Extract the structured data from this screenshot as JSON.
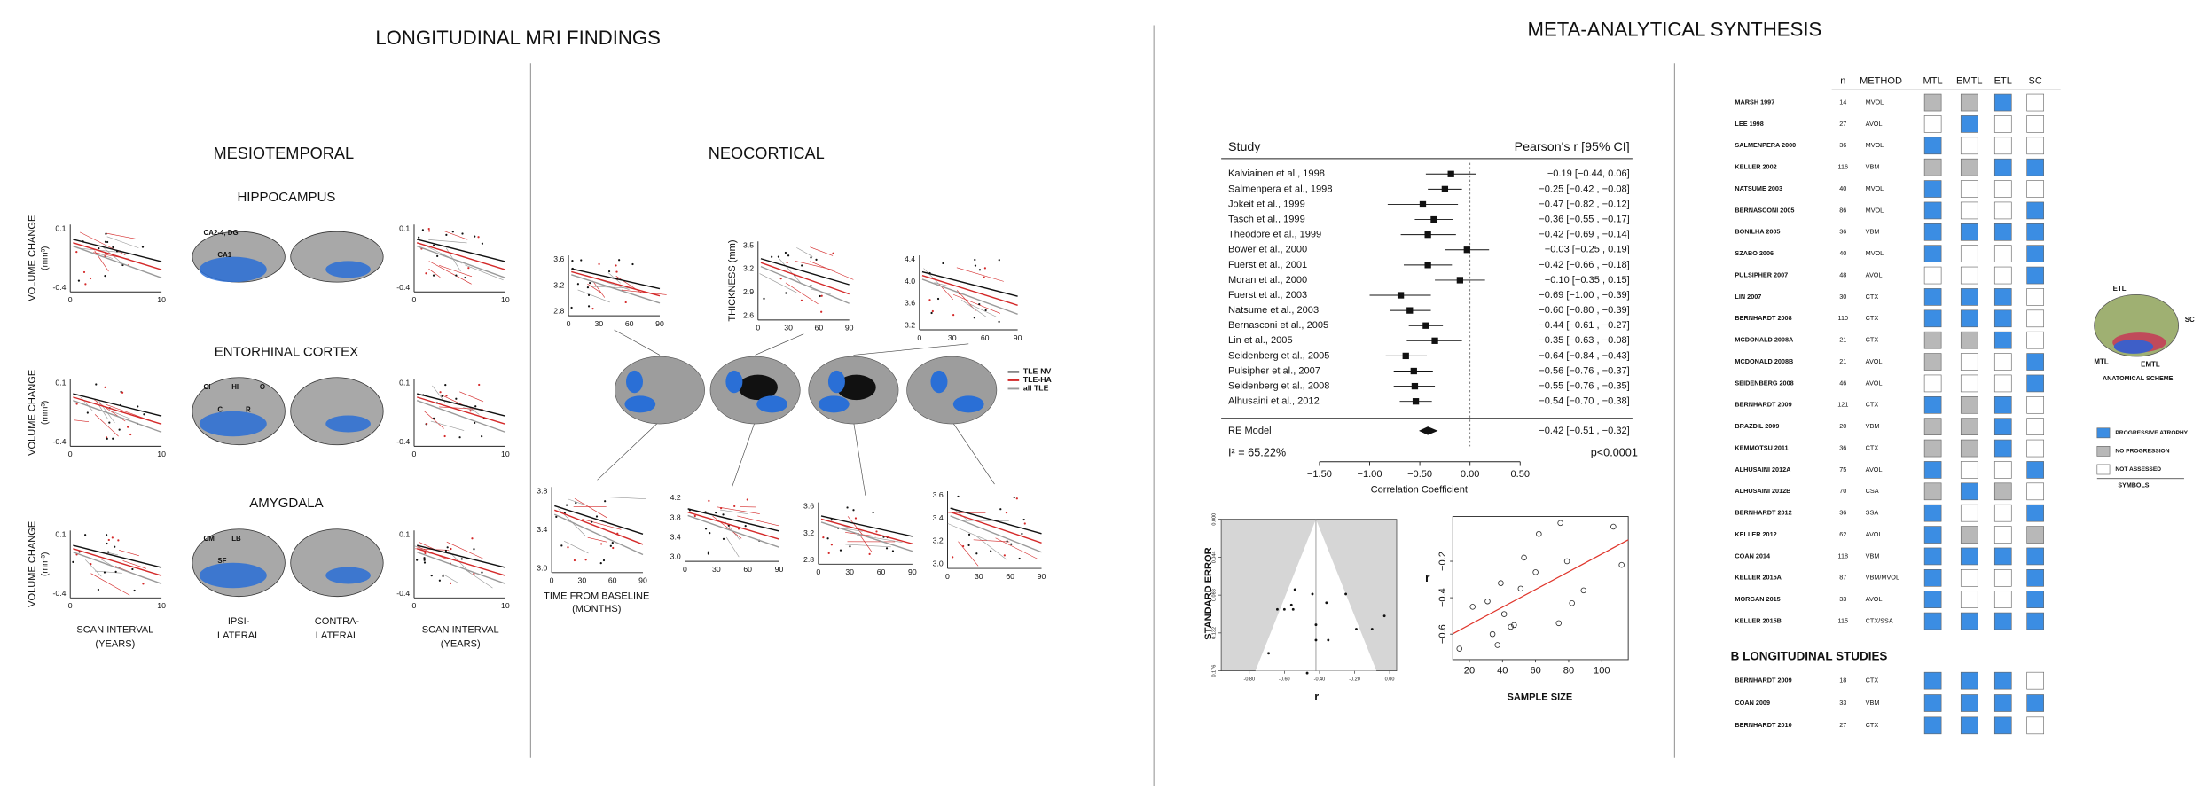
{
  "left": {
    "title": "LONGITUDINAL MRI FINDINGS",
    "mesio": "MESIOTEMPORAL",
    "neo": "NEOCORTICAL",
    "structures": [
      "HIPPOCAMPUS",
      "ENTORHINAL CORTEX",
      "AMYGDALA"
    ],
    "y_label": [
      "VOLUME CHANGE",
      "(mm³)"
    ],
    "x_label": [
      "SCAN INTERVAL",
      "(YEARS)"
    ],
    "sides": [
      [
        "IPSI-",
        "LATERAL"
      ],
      [
        "CONTRA-",
        "LATERAL"
      ]
    ],
    "mesio_yticks": [
      "0.1",
      "-0.4"
    ],
    "mesio_xticks": [
      "0",
      "10"
    ],
    "subfields": [
      [
        "CA2-4, DG",
        "CA1"
      ],
      [
        "CI",
        "C",
        "HI",
        "R",
        "O"
      ],
      [
        "CM",
        "SF",
        "LB"
      ]
    ],
    "neo_plots": [
      {
        "yticks": [
          "3.6",
          "3.2",
          "2.8"
        ]
      },
      {
        "yticks": [
          "3.5",
          "3.2",
          "2.9",
          "2.6"
        ]
      },
      {
        "yticks": [
          "4.4",
          "4.0",
          "3.6",
          "3.2"
        ]
      },
      {
        "yticks": [
          "3.8",
          "3.4",
          "3.0"
        ]
      },
      {
        "yticks": [
          "4.2",
          "3.8",
          "3.4",
          "3.0"
        ]
      },
      {
        "yticks": [
          "3.6",
          "3.2",
          "2.8"
        ]
      },
      {
        "yticks": [
          "3.6",
          "3.4",
          "3.2",
          "3.0"
        ]
      }
    ],
    "neo_xticks": [
      "0",
      "30",
      "60",
      "90"
    ],
    "thickness_label": "THICKNESS (mm)",
    "time_label": [
      "TIME FROM BASELINE",
      "(MONTHS)"
    ],
    "legend": [
      {
        "label": "TLE-NV",
        "color": "#111111"
      },
      {
        "label": "TLE-HA",
        "color": "#d42a2a"
      },
      {
        "label": "all TLE",
        "color": "#9a9a9a"
      }
    ]
  },
  "right": {
    "title": "META-ANALYTICAL SYNTHESIS",
    "forest": {
      "header_study": "Study",
      "header_r": "Pearson's r [95% CI]",
      "studies": [
        {
          "name": "Kalviainen et al., 1998",
          "r": -0.19,
          "lo": -0.44,
          "hi": 0.06,
          "ci": "−0.19 [−0.44,  0.06]"
        },
        {
          "name": "Salmenpera et al., 1998",
          "r": -0.25,
          "lo": -0.42,
          "hi": -0.08,
          "ci": "−0.25 [−0.42 , −0.08]"
        },
        {
          "name": "Jokeit et al., 1999",
          "r": -0.47,
          "lo": -0.82,
          "hi": -0.12,
          "ci": "−0.47 [−0.82 , −0.12]"
        },
        {
          "name": "Tasch et al., 1999",
          "r": -0.36,
          "lo": -0.55,
          "hi": -0.17,
          "ci": "−0.36 [−0.55 , −0.17]"
        },
        {
          "name": "Theodore et al., 1999",
          "r": -0.42,
          "lo": -0.69,
          "hi": -0.14,
          "ci": "−0.42 [−0.69 , −0.14]"
        },
        {
          "name": "Bower et al., 2000",
          "r": -0.03,
          "lo": -0.25,
          "hi": 0.19,
          "ci": "−0.03 [−0.25 ,  0.19]"
        },
        {
          "name": "Fuerst et al., 2001",
          "r": -0.42,
          "lo": -0.66,
          "hi": -0.18,
          "ci": "−0.42 [−0.66 , −0.18]"
        },
        {
          "name": "Moran et al., 2000",
          "r": -0.1,
          "lo": -0.35,
          "hi": 0.15,
          "ci": "−0.10 [−0.35 ,  0.15]"
        },
        {
          "name": "Fuerst et al., 2003",
          "r": -0.69,
          "lo": -1.0,
          "hi": -0.39,
          "ci": "−0.69 [−1.00 , −0.39]"
        },
        {
          "name": "Natsume et al., 2003",
          "r": -0.6,
          "lo": -0.8,
          "hi": -0.39,
          "ci": "−0.60 [−0.80 , −0.39]"
        },
        {
          "name": "Bernasconi et al., 2005",
          "r": -0.44,
          "lo": -0.61,
          "hi": -0.27,
          "ci": "−0.44 [−0.61 , −0.27]"
        },
        {
          "name": "Lin et al., 2005",
          "r": -0.35,
          "lo": -0.63,
          "hi": -0.08,
          "ci": "−0.35 [−0.63 , −0.08]"
        },
        {
          "name": "Seidenberg et al., 2005",
          "r": -0.64,
          "lo": -0.84,
          "hi": -0.43,
          "ci": "−0.64 [−0.84 , −0.43]"
        },
        {
          "name": "Pulsipher et al., 2007",
          "r": -0.56,
          "lo": -0.76,
          "hi": -0.37,
          "ci": "−0.56 [−0.76 , −0.37]"
        },
        {
          "name": "Seidenberg et al., 2008",
          "r": -0.55,
          "lo": -0.76,
          "hi": -0.35,
          "ci": "−0.55 [−0.76 , −0.35]"
        },
        {
          "name": "Alhusaini et al., 2012",
          "r": -0.54,
          "lo": -0.7,
          "hi": -0.38,
          "ci": "−0.54 [−0.70 , −0.38]"
        }
      ],
      "re": {
        "name": "RE Model",
        "r": -0.42,
        "lo": -0.51,
        "hi": -0.32,
        "ci": "−0.42 [−0.51 , −0.32]"
      },
      "i2": "I² = 65.22%",
      "p": "p<0.0001",
      "xlabel": "Correlation Coefficient",
      "xlim": [
        -1.5,
        0.5
      ],
      "xticks": [
        {
          "value": -1.5,
          "label": "−1.50"
        },
        {
          "value": -1,
          "label": "−1.00"
        },
        {
          "value": -0.5,
          "label": "−0.50"
        },
        {
          "value": 0,
          "label": "0.00"
        },
        {
          "value": 0.5,
          "label": "0.50"
        }
      ]
    },
    "funnel": {
      "ylabel": "STANDARD ERROR",
      "xlabel": "r",
      "xlim": [
        -0.96,
        0.04
      ],
      "ylim": [
        0,
        0.176
      ],
      "xticks": [
        {
          "value": -0.8,
          "label": "-0.80"
        },
        {
          "value": -0.6,
          "label": "-0.60"
        },
        {
          "value": -0.4,
          "label": "-0.40"
        },
        {
          "value": -0.2,
          "label": "-0.20"
        },
        {
          "value": 0,
          "label": "0.00"
        }
      ],
      "yticks": [
        {
          "value": 0,
          "label": "0.000"
        },
        {
          "value": 0.044,
          "label": "0.044"
        },
        {
          "value": 0.088,
          "label": "0.088"
        },
        {
          "value": 0.132,
          "label": "0.132"
        },
        {
          "value": 0.176,
          "label": "0.176"
        }
      ]
    },
    "scatter": {
      "xlabel": "SAMPLE SIZE",
      "ylabel": "r",
      "x": [
        14,
        22,
        31,
        34,
        37,
        39,
        41,
        45,
        47,
        51,
        53,
        60,
        62,
        74,
        75,
        79,
        82,
        89,
        107,
        112
      ],
      "y": [
        -0.68,
        -0.45,
        -0.42,
        -0.6,
        -0.66,
        -0.32,
        -0.49,
        -0.56,
        -0.55,
        -0.35,
        -0.18,
        -0.26,
        -0.05,
        -0.54,
        0.01,
        -0.2,
        -0.43,
        -0.36,
        -0.01,
        -0.22
      ],
      "xlim": [
        10,
        116
      ],
      "ylim": [
        -0.74,
        0.046
      ],
      "xticks": [
        20,
        40,
        60,
        80,
        100
      ],
      "yticks": [
        {
          "value": -0.6,
          "label": "−0.6"
        },
        {
          "value": -0.4,
          "label": "−0.4"
        },
        {
          "value": -0.2,
          "label": "−0.2"
        }
      ],
      "fit_color": "#e0352b"
    },
    "table": {
      "columns": [
        "n",
        "METHOD",
        "MTL",
        "EMTL",
        "ETL",
        "SC"
      ],
      "rows": [
        {
          "study": "MARSH 1997",
          "n": 14,
          "method": "MVOL",
          "cells": [
            "#b8b8b8",
            "#b8b8b8",
            "#3b8de3",
            "#ffffff"
          ]
        },
        {
          "study": "LEE 1998",
          "n": 27,
          "method": "AVOL",
          "cells": [
            "#ffffff",
            "#3b8de3",
            "#ffffff",
            "#ffffff"
          ]
        },
        {
          "study": "SALMENPERA 2000",
          "n": 36,
          "method": "MVOL",
          "cells": [
            "#3b8de3",
            "#ffffff",
            "#ffffff",
            "#ffffff"
          ]
        },
        {
          "study": "KELLER 2002",
          "n": 116,
          "method": "VBM",
          "cells": [
            "#b8b8b8",
            "#b8b8b8",
            "#3b8de3",
            "#3b8de3"
          ]
        },
        {
          "study": "NATSUME 2003",
          "n": 40,
          "method": "MVOL",
          "cells": [
            "#3b8de3",
            "#ffffff",
            "#ffffff",
            "#ffffff"
          ]
        },
        {
          "study": "BERNASCONI 2005",
          "n": 86,
          "method": "MVOL",
          "cells": [
            "#3b8de3",
            "#ffffff",
            "#ffffff",
            "#3b8de3"
          ]
        },
        {
          "study": "BONILHA 2005",
          "n": 36,
          "method": "VBM",
          "cells": [
            "#3b8de3",
            "#3b8de3",
            "#3b8de3",
            "#3b8de3"
          ]
        },
        {
          "study": "SZABO 2006",
          "n": 40,
          "method": "MVOL",
          "cells": [
            "#3b8de3",
            "#ffffff",
            "#ffffff",
            "#3b8de3"
          ]
        },
        {
          "study": "PULSIPHER 2007",
          "n": 48,
          "method": "AVOL",
          "cells": [
            "#ffffff",
            "#ffffff",
            "#ffffff",
            "#3b8de3"
          ]
        },
        {
          "study": "LIN 2007",
          "n": 30,
          "method": "CTX",
          "cells": [
            "#3b8de3",
            "#3b8de3",
            "#3b8de3",
            "#ffffff"
          ]
        },
        {
          "study": "BERNHARDT 2008",
          "n": 110,
          "method": "CTX",
          "cells": [
            "#3b8de3",
            "#3b8de3",
            "#3b8de3",
            "#ffffff"
          ]
        },
        {
          "study": "MCDONALD 2008A",
          "n": 21,
          "method": "CTX",
          "cells": [
            "#b8b8b8",
            "#b8b8b8",
            "#3b8de3",
            "#ffffff"
          ]
        },
        {
          "study": "MCDONALD 2008B",
          "n": 21,
          "method": "AVOL",
          "cells": [
            "#b8b8b8",
            "#ffffff",
            "#ffffff",
            "#3b8de3"
          ]
        },
        {
          "study": "SEIDENBERG 2008",
          "n": 46,
          "method": "AVOL",
          "cells": [
            "#ffffff",
            "#ffffff",
            "#ffffff",
            "#3b8de3"
          ]
        },
        {
          "study": "BERNHARDT 2009",
          "n": 121,
          "method": "CTX",
          "cells": [
            "#3b8de3",
            "#b8b8b8",
            "#3b8de3",
            "#ffffff"
          ]
        },
        {
          "study": "BRAZDIL 2009",
          "n": 20,
          "method": "VBM",
          "cells": [
            "#b8b8b8",
            "#b8b8b8",
            "#3b8de3",
            "#ffffff"
          ]
        },
        {
          "study": "KEMMOTSU 2011",
          "n": 36,
          "method": "CTX",
          "cells": [
            "#b8b8b8",
            "#b8b8b8",
            "#3b8de3",
            "#ffffff"
          ]
        },
        {
          "study": "ALHUSAINI 2012A",
          "n": 75,
          "method": "AVOL",
          "cells": [
            "#3b8de3",
            "#ffffff",
            "#ffffff",
            "#3b8de3"
          ]
        },
        {
          "study": "ALHUSAINI 2012B",
          "n": 70,
          "method": "CSA",
          "cells": [
            "#b8b8b8",
            "#3b8de3",
            "#b8b8b8",
            "#ffffff"
          ]
        },
        {
          "study": "BERNHARDT 2012",
          "n": 36,
          "method": "SSA",
          "cells": [
            "#3b8de3",
            "#ffffff",
            "#ffffff",
            "#3b8de3"
          ]
        },
        {
          "study": "KELLER 2012",
          "n": 62,
          "method": "AVOL",
          "cells": [
            "#3b8de3",
            "#b8b8b8",
            "#ffffff",
            "#b8b8b8"
          ]
        },
        {
          "study": "COAN 2014",
          "n": 118,
          "method": "VBM",
          "cells": [
            "#3b8de3",
            "#3b8de3",
            "#3b8de3",
            "#3b8de3"
          ]
        },
        {
          "study": "KELLER 2015A",
          "n": 87,
          "method": "VBM/MVOL",
          "cells": [
            "#3b8de3",
            "#ffffff",
            "#ffffff",
            "#3b8de3"
          ]
        },
        {
          "study": "MORGAN 2015",
          "n": 33,
          "method": "AVOL",
          "cells": [
            "#3b8de3",
            "#ffffff",
            "#ffffff",
            "#3b8de3"
          ]
        },
        {
          "study": "KELLER 2015B",
          "n": 115,
          "method": "CTX/SSA",
          "cells": [
            "#3b8de3",
            "#3b8de3",
            "#3b8de3",
            "#3b8de3"
          ]
        }
      ],
      "section_b": "B  LONGITUDINAL STUDIES",
      "rows_b": [
        {
          "study": "BERNHARDT 2009",
          "n": 18,
          "method": "CTX",
          "cells": [
            "#3b8de3",
            "#3b8de3",
            "#3b8de3",
            "#ffffff"
          ]
        },
        {
          "study": "COAN 2009",
          "n": 33,
          "method": "VBM",
          "cells": [
            "#3b8de3",
            "#3b8de3",
            "#3b8de3",
            "#3b8de3"
          ]
        },
        {
          "study": "BERNHARDT 2010",
          "n": 27,
          "method": "CTX",
          "cells": [
            "#3b8de3",
            "#3b8de3",
            "#3b8de3",
            "#ffffff"
          ]
        }
      ],
      "legend": [
        {
          "label": "PROGRESSIVE ATROPHY",
          "color": "#3b8de3"
        },
        {
          "label": "NO PROGRESSION",
          "color": "#b8b8b8"
        },
        {
          "label": "NOT ASSESSED",
          "color": "#ffffff"
        }
      ],
      "legend_title": "SYMBOLS",
      "scheme_title": "ANATOMICAL SCHEME",
      "scheme_labels": [
        "ETL",
        "SC",
        "MTL",
        "EMTL"
      ]
    }
  }
}
